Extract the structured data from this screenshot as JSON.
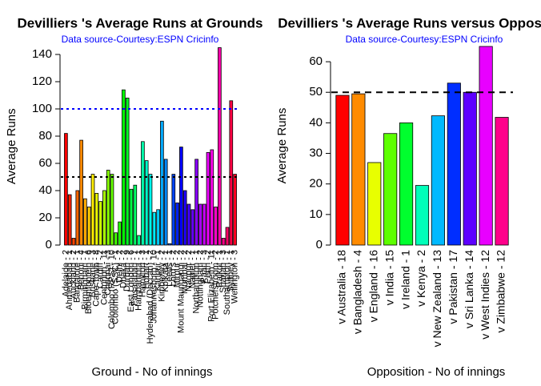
{
  "chart_data": [
    {
      "type": "bar",
      "title": "Devilliers 's Average Runs at Grounds",
      "subtitle": "Data source-Courtesy:ESPN Cricinfo",
      "xlabel": "Ground - No of innings",
      "ylabel": "Average Runs",
      "categories": [
        "Adelaide - 2",
        "Ahmedabad - 1",
        "Auckland - 2",
        "Bangalore - 1",
        "Benoni - 4",
        "Birmingham - 1",
        "Bloemfontein - 6",
        "Brisbane - 3",
        "Cape Town - 8",
        "Cardiff - 2",
        "Centurion - 11",
        "Chennai - 3",
        "Colombo (RPS) - 10",
        "Colombo (SSC) - 1",
        "Delhi - 2",
        "Dhaka - 2",
        "Durban - 9",
        "East London - 6",
        "Faisalabad - 1",
        "Hambantota - 1",
        "Hamilton - 3",
        "Hobart - 1",
        "Hyderabad (Deccan) - 2",
        "Johannesburg - 10",
        "Kanpur - 1",
        "Kimberley - 2",
        "Kolkata - 1",
        "Leeds - 1",
        "Lord's - 2",
        "Mirpur - 2",
        "Mount Maunganui - 2",
        "Mumbai - 2",
        "Nagpur - 2",
        "Napier - 1",
        "Northampton - 1",
        "Nottingham - 2",
        "Paarl - 3",
        "Perth - 2",
        "Port Elizabeth - 11",
        "Potchefstroom - 2",
        "Rajkot - 1",
        "Sharjah - 3",
        "Southampton - 1",
        "Sydney - 1",
        "Wellington - 3"
      ],
      "values": [
        82,
        37,
        5,
        40,
        77,
        34,
        28,
        52,
        38,
        32,
        40,
        55,
        52,
        9,
        17,
        114,
        108,
        41,
        44,
        7,
        76,
        62,
        52,
        24,
        26,
        91,
        63,
        1,
        52,
        31,
        72,
        40,
        30,
        26,
        63,
        30,
        30,
        68,
        70,
        28,
        145,
        5,
        13,
        106,
        52
      ],
      "palette": "rainbow",
      "ylim": [
        0,
        145
      ],
      "yticks": [
        0,
        20,
        40,
        60,
        80,
        100,
        120,
        140
      ],
      "ref_lines": [
        {
          "value": 50,
          "color": "#000000"
        },
        {
          "value": 100,
          "color": "#0000ff"
        }
      ]
    },
    {
      "type": "bar",
      "title": "Devilliers 's Average Runs versus Opposition",
      "subtitle": "Data source-Courtesy:ESPN Cricinfo",
      "xlabel": "Opposition - No of innings",
      "ylabel": "Average Runs",
      "categories": [
        "v Australia - 18",
        "v Bangladesh - 4",
        "v England - 16",
        "v India - 15",
        "v Ireland - 1",
        "v Kenya - 2",
        "v New Zealand - 13",
        "v Pakistan - 17",
        "v Sri Lanka - 14",
        "v West Indies - 12",
        "v Zimbabwe - 12"
      ],
      "values": [
        49,
        49.5,
        27,
        36.5,
        40,
        19.5,
        42.3,
        53,
        50,
        65,
        41.8
      ],
      "palette": "rainbow",
      "ylim": [
        0,
        65
      ],
      "yticks": [
        0,
        10,
        20,
        30,
        40,
        50,
        60
      ],
      "ref_lines": [
        {
          "value": 50,
          "color": "#000000"
        }
      ]
    }
  ]
}
